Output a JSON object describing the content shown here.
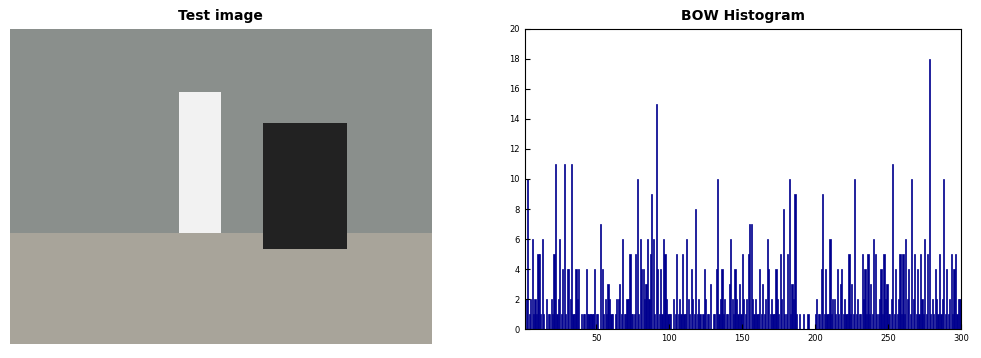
{
  "chart_data": [
    {
      "type": "image",
      "title": "Test image"
    },
    {
      "type": "bar",
      "title": "BOW Histogram",
      "color": "#00008f",
      "x": [
        1,
        2,
        3,
        4,
        5,
        6,
        7,
        8,
        9,
        10,
        11,
        12,
        13,
        14,
        15,
        16,
        17,
        18,
        19,
        20,
        21,
        22,
        23,
        24,
        25,
        26,
        27,
        28,
        29,
        30,
        31,
        32,
        33,
        34,
        35,
        36,
        37,
        38,
        39,
        40,
        41,
        42,
        43,
        44,
        45,
        46,
        47,
        48,
        49,
        50,
        51,
        52,
        53,
        54,
        55,
        56,
        57,
        58,
        59,
        60,
        61,
        62,
        63,
        64,
        65,
        66,
        67,
        68,
        69,
        70,
        71,
        72,
        73,
        74,
        75,
        76,
        77,
        78,
        79,
        80,
        81,
        82,
        83,
        84,
        85,
        86,
        87,
        88,
        89,
        90,
        91,
        92,
        93,
        94,
        95,
        96,
        97,
        98,
        99,
        100,
        101,
        102,
        103,
        104,
        105,
        106,
        107,
        108,
        109,
        110,
        111,
        112,
        113,
        114,
        115,
        116,
        117,
        118,
        119,
        120,
        121,
        122,
        123,
        124,
        125,
        126,
        127,
        128,
        129,
        130,
        131,
        132,
        133,
        134,
        135,
        136,
        137,
        138,
        139,
        140,
        141,
        142,
        143,
        144,
        145,
        146,
        147,
        148,
        149,
        150,
        151,
        152,
        153,
        154,
        155,
        156,
        157,
        158,
        159,
        160,
        161,
        162,
        163,
        164,
        165,
        166,
        167,
        168,
        169,
        170,
        171,
        172,
        173,
        174,
        175,
        176,
        177,
        178,
        179,
        180,
        181,
        182,
        183,
        184,
        185,
        186,
        187,
        188,
        189,
        190,
        191,
        192,
        193,
        194,
        195,
        196,
        197,
        198,
        199,
        200,
        201,
        202,
        203,
        204,
        205,
        206,
        207,
        208,
        209,
        210,
        211,
        212,
        213,
        214,
        215,
        216,
        217,
        218,
        219,
        220,
        221,
        222,
        223,
        224,
        225,
        226,
        227,
        228,
        229,
        230,
        231,
        232,
        233,
        234,
        235,
        236,
        237,
        238,
        239,
        240,
        241,
        242,
        243,
        244,
        245,
        246,
        247,
        248,
        249,
        250,
        251,
        252,
        253,
        254,
        255,
        256,
        257,
        258,
        259,
        260,
        261,
        262,
        263,
        264,
        265,
        266,
        267,
        268,
        269,
        270,
        271,
        272,
        273,
        274,
        275,
        276,
        277,
        278,
        279,
        280,
        281,
        282,
        283,
        284,
        285,
        286,
        287,
        288,
        289,
        290,
        291,
        292,
        293,
        294,
        295,
        296,
        297,
        298,
        299,
        300
      ],
      "values": [
        2,
        2,
        10,
        1,
        2,
        6,
        1,
        2,
        1,
        5,
        5,
        1,
        6,
        1,
        0,
        2,
        1,
        1,
        2,
        1,
        5,
        11,
        1,
        2,
        6,
        1,
        4,
        11,
        1,
        4,
        4,
        2,
        11,
        1,
        1,
        4,
        2,
        4,
        0,
        1,
        1,
        1,
        4,
        1,
        1,
        1,
        1,
        1,
        4,
        1,
        1,
        0,
        7,
        4,
        1,
        2,
        1,
        3,
        2,
        1,
        1,
        0,
        1,
        2,
        2,
        3,
        1,
        6,
        1,
        1,
        2,
        2,
        5,
        1,
        1,
        1,
        5,
        10,
        1,
        6,
        4,
        4,
        2,
        3,
        6,
        2,
        5,
        9,
        6,
        1,
        15,
        4,
        1,
        4,
        1,
        6,
        5,
        2,
        1,
        1,
        1,
        0,
        2,
        1,
        5,
        1,
        2,
        1,
        5,
        1,
        1,
        6,
        2,
        1,
        4,
        2,
        1,
        8,
        1,
        2,
        1,
        0,
        1,
        4,
        2,
        1,
        1,
        3,
        0,
        1,
        1,
        4,
        10,
        1,
        2,
        4,
        1,
        2,
        1,
        1,
        3,
        6,
        2,
        1,
        4,
        2,
        1,
        3,
        1,
        5,
        2,
        1,
        2,
        5,
        7,
        7,
        2,
        1,
        2,
        1,
        1,
        4,
        1,
        3,
        1,
        2,
        6,
        4,
        1,
        2,
        1,
        1,
        4,
        2,
        1,
        5,
        2,
        8,
        1,
        1,
        5,
        10,
        1,
        3,
        2,
        9,
        1,
        0,
        1,
        0,
        0,
        1,
        0,
        0,
        1,
        0,
        0,
        0,
        0,
        1,
        2,
        1,
        1,
        4,
        9,
        1,
        4,
        1,
        1,
        6,
        1,
        2,
        2,
        1,
        4,
        1,
        3,
        4,
        1,
        2,
        1,
        1,
        5,
        1,
        3,
        1,
        10,
        1,
        2,
        1,
        1,
        5,
        2,
        4,
        1,
        5,
        1,
        3,
        1,
        6,
        5,
        1,
        1,
        2,
        4,
        1,
        5,
        2,
        3,
        1,
        1,
        2,
        11,
        1,
        4,
        1,
        2,
        5,
        1,
        5,
        1,
        6,
        2,
        4,
        1,
        10,
        2,
        5,
        1,
        4,
        1,
        5,
        2,
        1,
        6,
        1,
        5,
        18,
        1,
        2,
        1,
        4,
        2,
        1,
        5,
        1,
        2,
        10,
        1,
        4,
        1,
        2,
        5,
        1,
        4,
        5,
        1,
        2,
        2,
        1
      ],
      "xlim": [
        1,
        300
      ],
      "xticks": [
        50,
        100,
        150,
        200,
        250,
        300
      ],
      "ylim": [
        0,
        20
      ],
      "yticks": [
        0,
        2,
        4,
        6,
        8,
        10,
        12,
        14,
        16,
        18,
        20
      ]
    }
  ]
}
